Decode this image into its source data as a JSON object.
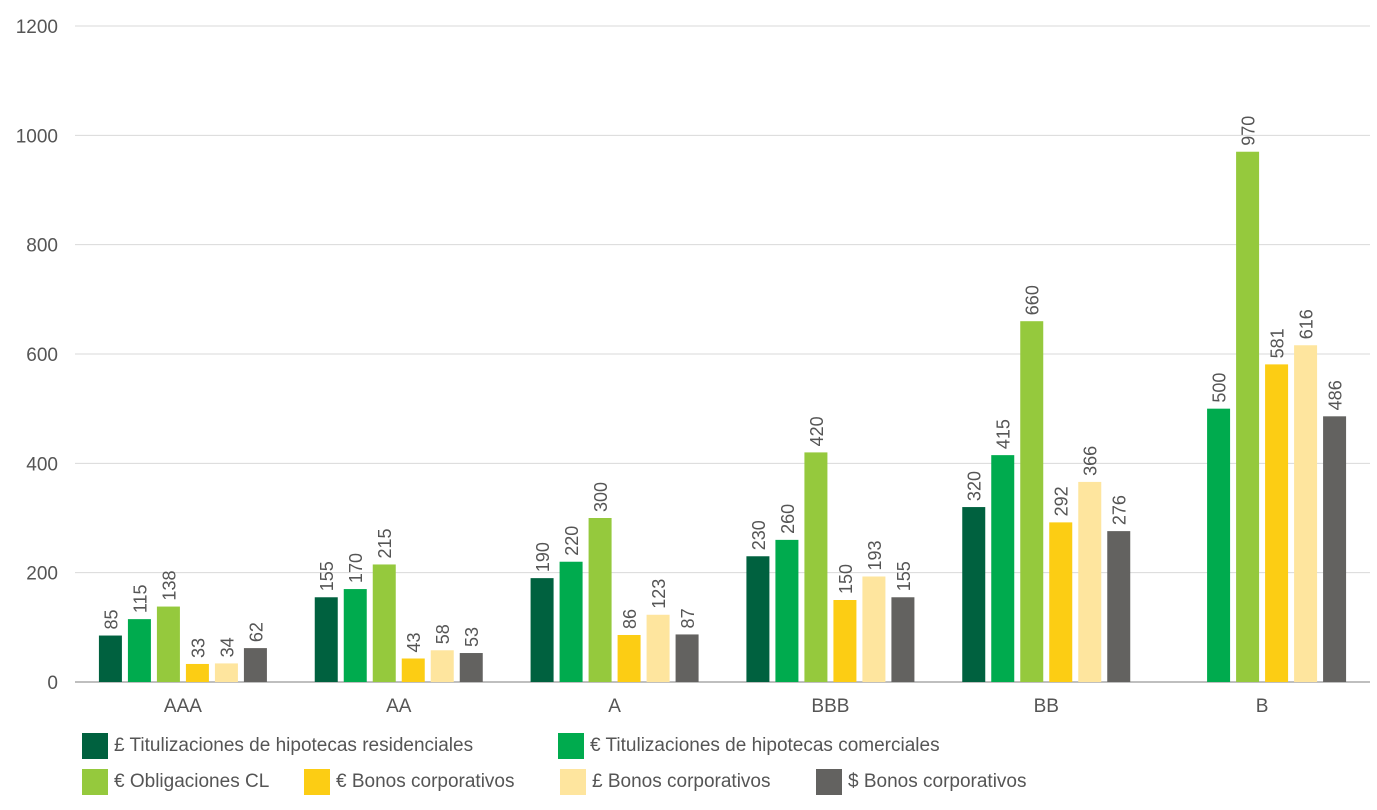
{
  "chart_data": {
    "type": "bar",
    "categories": [
      "AAA",
      "AA",
      "A",
      "BBB",
      "BB",
      "B"
    ],
    "series": [
      {
        "name": "£ Titulizaciones de hipotecas residenciales",
        "color": "#00613f",
        "values": [
          85,
          155,
          190,
          230,
          320,
          null
        ]
      },
      {
        "name": "€ Titulizaciones de hipotecas comerciales",
        "color": "#00ab4e",
        "values": [
          115,
          170,
          220,
          260,
          415,
          500
        ]
      },
      {
        "name": "€ Obligaciones CL",
        "color": "#95c93d",
        "values": [
          138,
          215,
          300,
          420,
          660,
          970
        ]
      },
      {
        "name": "€ Bonos corporativos",
        "color": "#fccd14",
        "values": [
          33,
          43,
          86,
          150,
          292,
          581
        ]
      },
      {
        "name": "£ Bonos corporativos",
        "color": "#fee59e",
        "values": [
          34,
          58,
          123,
          193,
          366,
          616
        ]
      },
      {
        "name": "$ Bonos corporativos",
        "color": "#636260",
        "values": [
          62,
          53,
          87,
          155,
          276,
          486
        ]
      }
    ],
    "yticks": [
      0,
      200,
      400,
      600,
      800,
      1000,
      1200
    ],
    "ylim": [
      0,
      1200
    ],
    "grid": true,
    "data_labels": true,
    "legend_position": "bottom"
  }
}
